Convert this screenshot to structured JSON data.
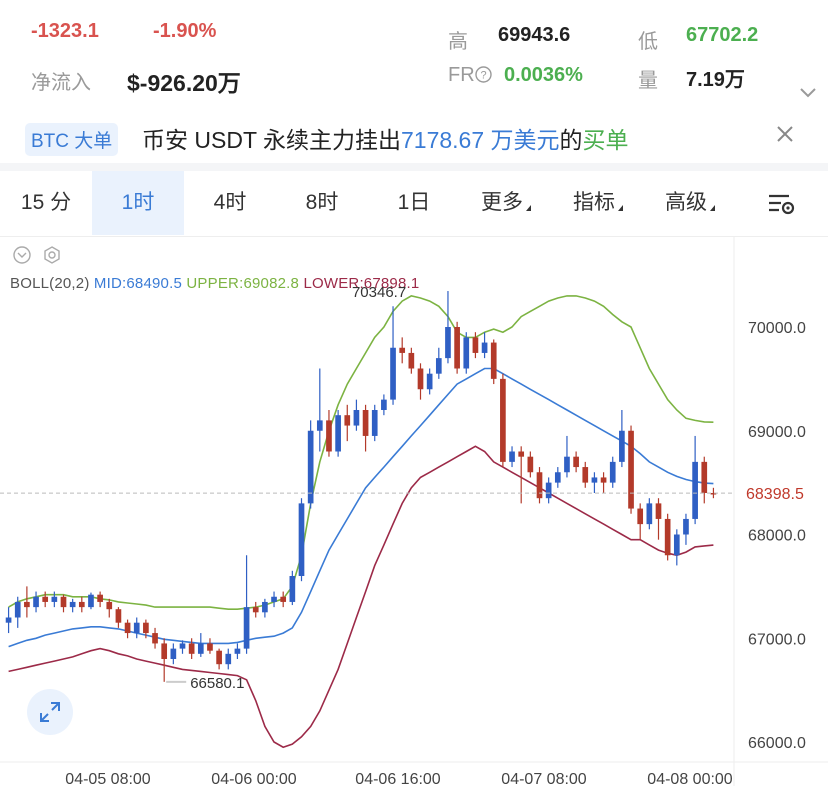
{
  "stats": {
    "change": "-1323.1",
    "change_pct": "-1.90%",
    "net_inflow_label": "净流入",
    "net_inflow_value": "$-926.20万",
    "high_label": "高",
    "high_value": "69943.6",
    "low_label": "低",
    "low_value": "67702.2",
    "fr_label": "FR",
    "fr_value": "0.0036%",
    "volume_label": "量",
    "volume_value": "7.19万"
  },
  "banner": {
    "tag": "BTC 大单",
    "text_prefix": "币安 USDT 永续主力挂出",
    "amount": "7178.67 万美元",
    "text_mid": "的",
    "side": "买单"
  },
  "tabs": [
    {
      "label": "15 分",
      "active": false
    },
    {
      "label": "1时",
      "active": true
    },
    {
      "label": "4时",
      "active": false
    },
    {
      "label": "8时",
      "active": false
    },
    {
      "label": "1日",
      "active": false
    },
    {
      "label": "更多",
      "active": false,
      "dropdown": true
    },
    {
      "label": "指标",
      "active": false,
      "dropdown": true
    },
    {
      "label": "高级",
      "active": false,
      "dropdown": true
    }
  ],
  "indicator": {
    "name": "BOLL(20,2)",
    "mid": "MID:68490.5",
    "upper": "UPPER:69082.8",
    "lower": "LOWER:67898.1"
  },
  "colors": {
    "up": "#2f5fc4",
    "down": "#b33a2a",
    "mid": "#3a7bd5",
    "upper": "#7cb342",
    "lower": "#9c2a48"
  },
  "chart_data": {
    "type": "candlestick",
    "y_ticks": [
      "70000.0",
      "69000.0",
      "68000.0",
      "67000.0",
      "66000.0"
    ],
    "y_tick_values": [
      70000,
      69000,
      68000,
      67000,
      66000
    ],
    "x_ticks": [
      "04-05 08:00",
      "04-06 00:00",
      "04-06 16:00",
      "04-07 08:00",
      "04-08 00:00"
    ],
    "ylim": [
      65850,
      70600
    ],
    "last_price": 68398.5,
    "last_price_label": "68398.5",
    "max_label": "70346.7",
    "max_value": 70346.7,
    "min_label": "66580.1",
    "min_value": 66580.1,
    "candles": [
      {
        "o": 67150,
        "c": 67200,
        "h": 67300,
        "l": 67050
      },
      {
        "o": 67200,
        "c": 67350,
        "h": 67400,
        "l": 67100
      },
      {
        "o": 67350,
        "c": 67300,
        "h": 67500,
        "l": 67200
      },
      {
        "o": 67300,
        "c": 67400,
        "h": 67450,
        "l": 67250
      },
      {
        "o": 67400,
        "c": 67350,
        "h": 67450,
        "l": 67300
      },
      {
        "o": 67350,
        "c": 67400,
        "h": 67450,
        "l": 67300
      },
      {
        "o": 67400,
        "c": 67300,
        "h": 67420,
        "l": 67250
      },
      {
        "o": 67300,
        "c": 67350,
        "h": 67380,
        "l": 67250
      },
      {
        "o": 67350,
        "c": 67300,
        "h": 67400,
        "l": 67250
      },
      {
        "o": 67300,
        "c": 67420,
        "h": 67440,
        "l": 67280
      },
      {
        "o": 67420,
        "c": 67350,
        "h": 67450,
        "l": 67300
      },
      {
        "o": 67350,
        "c": 67280,
        "h": 67380,
        "l": 67200
      },
      {
        "o": 67280,
        "c": 67150,
        "h": 67300,
        "l": 67100
      },
      {
        "o": 67150,
        "c": 67050,
        "h": 67180,
        "l": 67000
      },
      {
        "o": 67050,
        "c": 67150,
        "h": 67200,
        "l": 67000
      },
      {
        "o": 67150,
        "c": 67050,
        "h": 67180,
        "l": 67000
      },
      {
        "o": 67050,
        "c": 66950,
        "h": 67100,
        "l": 66900
      },
      {
        "o": 66950,
        "c": 66800,
        "h": 67000,
        "l": 66580
      },
      {
        "o": 66800,
        "c": 66900,
        "h": 66950,
        "l": 66750
      },
      {
        "o": 66900,
        "c": 66950,
        "h": 66980,
        "l": 66850
      },
      {
        "o": 66950,
        "c": 66850,
        "h": 67000,
        "l": 66800
      },
      {
        "o": 66850,
        "c": 66950,
        "h": 67050,
        "l": 66820
      },
      {
        "o": 66950,
        "c": 66880,
        "h": 67000,
        "l": 66850
      },
      {
        "o": 66880,
        "c": 66750,
        "h": 66900,
        "l": 66700
      },
      {
        "o": 66750,
        "c": 66850,
        "h": 66900,
        "l": 66700
      },
      {
        "o": 66850,
        "c": 66900,
        "h": 66950,
        "l": 66800
      },
      {
        "o": 66900,
        "c": 67300,
        "h": 67800,
        "l": 66850
      },
      {
        "o": 67300,
        "c": 67250,
        "h": 67350,
        "l": 67200
      },
      {
        "o": 67250,
        "c": 67350,
        "h": 67380,
        "l": 67200
      },
      {
        "o": 67350,
        "c": 67400,
        "h": 67450,
        "l": 67300
      },
      {
        "o": 67400,
        "c": 67350,
        "h": 67450,
        "l": 67300
      },
      {
        "o": 67350,
        "c": 67600,
        "h": 67650,
        "l": 67320
      },
      {
        "o": 67600,
        "c": 68300,
        "h": 68350,
        "l": 67550
      },
      {
        "o": 68300,
        "c": 69000,
        "h": 69100,
        "l": 68250
      },
      {
        "o": 69000,
        "c": 69100,
        "h": 69600,
        "l": 68800
      },
      {
        "o": 69100,
        "c": 68800,
        "h": 69200,
        "l": 68750
      },
      {
        "o": 68800,
        "c": 69150,
        "h": 69200,
        "l": 68750
      },
      {
        "o": 69150,
        "c": 69050,
        "h": 69250,
        "l": 68900
      },
      {
        "o": 69050,
        "c": 69200,
        "h": 69300,
        "l": 69000
      },
      {
        "o": 69200,
        "c": 68950,
        "h": 69250,
        "l": 68800
      },
      {
        "o": 68950,
        "c": 69200,
        "h": 69250,
        "l": 68900
      },
      {
        "o": 69200,
        "c": 69300,
        "h": 69350,
        "l": 69150
      },
      {
        "o": 69300,
        "c": 69800,
        "h": 70200,
        "l": 69250
      },
      {
        "o": 69800,
        "c": 69750,
        "h": 69900,
        "l": 69650
      },
      {
        "o": 69750,
        "c": 69600,
        "h": 69800,
        "l": 69550
      },
      {
        "o": 69600,
        "c": 69400,
        "h": 69650,
        "l": 69300
      },
      {
        "o": 69400,
        "c": 69550,
        "h": 69600,
        "l": 69350
      },
      {
        "o": 69550,
        "c": 69700,
        "h": 69800,
        "l": 69500
      },
      {
        "o": 69700,
        "c": 70000,
        "h": 70346.7,
        "l": 69650
      },
      {
        "o": 70000,
        "c": 69600,
        "h": 70050,
        "l": 69550
      },
      {
        "o": 69600,
        "c": 69900,
        "h": 69950,
        "l": 69550
      },
      {
        "o": 69900,
        "c": 69750,
        "h": 69950,
        "l": 69700
      },
      {
        "o": 69750,
        "c": 69850,
        "h": 69950,
        "l": 69700
      },
      {
        "o": 69850,
        "c": 69500,
        "h": 69880,
        "l": 69450
      },
      {
        "o": 69500,
        "c": 68700,
        "h": 69550,
        "l": 68650
      },
      {
        "o": 68700,
        "c": 68800,
        "h": 68850,
        "l": 68650
      },
      {
        "o": 68800,
        "c": 68750,
        "h": 68850,
        "l": 68300
      },
      {
        "o": 68750,
        "c": 68600,
        "h": 68800,
        "l": 68550
      },
      {
        "o": 68600,
        "c": 68350,
        "h": 68650,
        "l": 68300
      },
      {
        "o": 68350,
        "c": 68500,
        "h": 68550,
        "l": 68300
      },
      {
        "o": 68500,
        "c": 68600,
        "h": 68650,
        "l": 68450
      },
      {
        "o": 68600,
        "c": 68750,
        "h": 68950,
        "l": 68550
      },
      {
        "o": 68750,
        "c": 68650,
        "h": 68800,
        "l": 68600
      },
      {
        "o": 68650,
        "c": 68500,
        "h": 68700,
        "l": 68450
      },
      {
        "o": 68500,
        "c": 68550,
        "h": 68600,
        "l": 68400
      },
      {
        "o": 68550,
        "c": 68500,
        "h": 68600,
        "l": 68400
      },
      {
        "o": 68500,
        "c": 68700,
        "h": 68750,
        "l": 68450
      },
      {
        "o": 68700,
        "c": 69000,
        "h": 69200,
        "l": 68650
      },
      {
        "o": 69000,
        "c": 68250,
        "h": 69050,
        "l": 68200
      },
      {
        "o": 68250,
        "c": 68100,
        "h": 68300,
        "l": 67950
      },
      {
        "o": 68100,
        "c": 68300,
        "h": 68350,
        "l": 68050
      },
      {
        "o": 68300,
        "c": 68150,
        "h": 68350,
        "l": 67950
      },
      {
        "o": 68150,
        "c": 67800,
        "h": 68200,
        "l": 67750
      },
      {
        "o": 67800,
        "c": 68000,
        "h": 68050,
        "l": 67702
      },
      {
        "o": 68000,
        "c": 68150,
        "h": 68200,
        "l": 67900
      },
      {
        "o": 68150,
        "c": 68700,
        "h": 68950,
        "l": 68100
      },
      {
        "o": 68700,
        "c": 68400,
        "h": 68750,
        "l": 68300
      },
      {
        "o": 68400,
        "c": 68398.5,
        "h": 68450,
        "l": 68350
      }
    ],
    "upper": [
      67300,
      67350,
      67380,
      67400,
      67420,
      67420,
      67420,
      67400,
      67400,
      67400,
      67380,
      67370,
      67350,
      67340,
      67330,
      67320,
      67300,
      67300,
      67300,
      67300,
      67300,
      67300,
      67300,
      67290,
      67280,
      67280,
      67290,
      67300,
      67320,
      67350,
      67380,
      67500,
      67800,
      68300,
      68700,
      69000,
      69250,
      69450,
      69600,
      69750,
      69900,
      70000,
      70150,
      70250,
      70300,
      70280,
      70250,
      70200,
      70100,
      69950,
      69900,
      69900,
      69950,
      69980,
      69950,
      70000,
      70100,
      70150,
      70200,
      70250,
      70280,
      70300,
      70300,
      70280,
      70250,
      70200,
      70120,
      70050,
      70000,
      69800,
      69600,
      69450,
      69300,
      69200,
      69120,
      69100,
      69085,
      69082.8
    ],
    "mid": [
      66920,
      66950,
      66980,
      67000,
      67030,
      67050,
      67070,
      67090,
      67100,
      67110,
      67110,
      67100,
      67090,
      67070,
      67050,
      67030,
      67010,
      66990,
      66980,
      66970,
      66960,
      66950,
      66950,
      66950,
      66950,
      66960,
      66980,
      67000,
      67010,
      67020,
      67050,
      67100,
      67250,
      67450,
      67650,
      67850,
      68000,
      68150,
      68300,
      68450,
      68550,
      68650,
      68750,
      68850,
      68950,
      69050,
      69150,
      69250,
      69350,
      69450,
      69500,
      69550,
      69600,
      69600,
      69550,
      69500,
      69450,
      69400,
      69350,
      69300,
      69250,
      69200,
      69150,
      69100,
      69050,
      69000,
      68950,
      68900,
      68850,
      68780,
      68700,
      68650,
      68600,
      68560,
      68530,
      68510,
      68495,
      68490.5
    ],
    "lower": [
      66680,
      66700,
      66720,
      66740,
      66760,
      66780,
      66800,
      66820,
      66850,
      66880,
      66900,
      66880,
      66850,
      66830,
      66800,
      66780,
      66760,
      66740,
      66720,
      66700,
      66690,
      66680,
      66670,
      66660,
      66650,
      66640,
      66600,
      66400,
      66150,
      66000,
      65950,
      65980,
      66050,
      66150,
      66300,
      66500,
      66700,
      66950,
      67200,
      67450,
      67700,
      67900,
      68100,
      68300,
      68450,
      68550,
      68600,
      68650,
      68700,
      68750,
      68800,
      68850,
      68800,
      68700,
      68650,
      68600,
      68550,
      68500,
      68450,
      68400,
      68350,
      68300,
      68250,
      68200,
      68150,
      68100,
      68050,
      68000,
      67950,
      67950,
      67900,
      67850,
      67820,
      67800,
      67830,
      67880,
      67890,
      67898.1
    ]
  }
}
